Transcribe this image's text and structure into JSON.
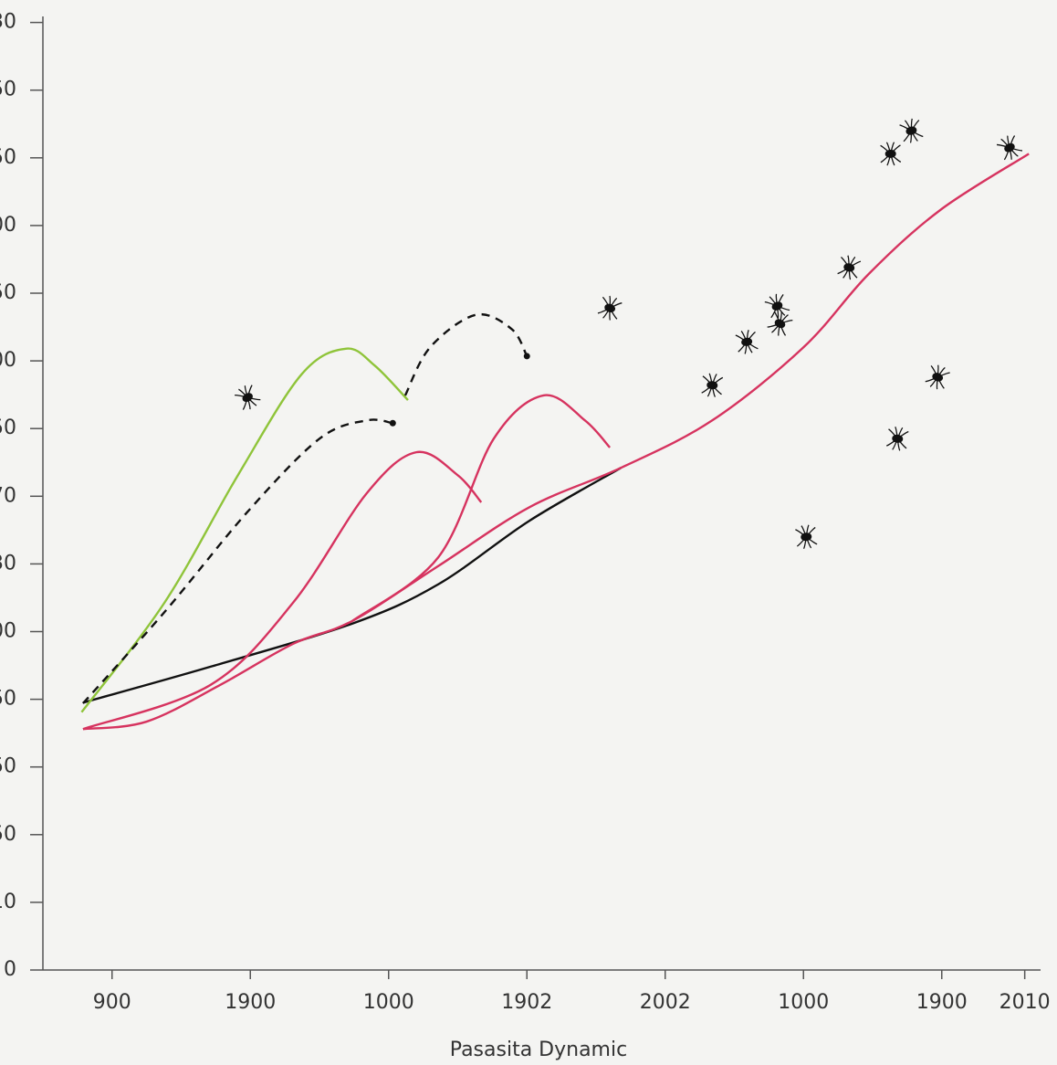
{
  "chart_data": {
    "type": "line",
    "x_label": "Pasasita Dynamic",
    "xlim": [
      -0.5,
      6.8
    ],
    "ylim": [
      0,
      14
    ],
    "xticks": [
      {
        "value": 0,
        "label": "900"
      },
      {
        "value": 1,
        "label": "1900"
      },
      {
        "value": 2,
        "label": "1000"
      },
      {
        "value": 3,
        "label": "1902"
      },
      {
        "value": 4,
        "label": "2002"
      },
      {
        "value": 5,
        "label": "1000"
      },
      {
        "value": 6,
        "label": "1900"
      },
      {
        "value": 6.6,
        "label": "2010"
      }
    ],
    "yticks": [
      {
        "value": 0,
        "label": "0"
      },
      {
        "value": 1,
        "label": "10"
      },
      {
        "value": 2,
        "label": "50"
      },
      {
        "value": 3,
        "label": "50"
      },
      {
        "value": 4,
        "label": "50"
      },
      {
        "value": 5,
        "label": "00"
      },
      {
        "value": 6,
        "label": "30"
      },
      {
        "value": 7,
        "label": "70"
      },
      {
        "value": 8,
        "label": "50"
      },
      {
        "value": 9,
        "label": "00"
      },
      {
        "value": 10,
        "label": "50"
      },
      {
        "value": 11,
        "label": "00"
      },
      {
        "value": 12,
        "label": "50"
      },
      {
        "value": 13,
        "label": "50"
      },
      {
        "value": 14,
        "label": "30"
      }
    ],
    "series": [
      {
        "color": "#111111",
        "dashed": false,
        "x": [
          -0.21,
          0.71,
          1.74,
          2.36,
          3.02,
          3.68
        ],
        "values": [
          3.95,
          4.48,
          5.12,
          5.7,
          6.64,
          7.42
        ]
      },
      {
        "color": "#d6335f",
        "dashed": false,
        "x": [
          -0.21,
          0.25,
          0.78,
          1.31,
          1.74,
          2.36,
          3.02,
          3.68,
          4.34,
          5.0,
          5.47,
          5.99,
          6.63
        ],
        "values": [
          3.56,
          3.67,
          4.21,
          4.82,
          5.16,
          5.97,
          6.84,
          7.42,
          8.12,
          9.2,
          10.28,
          11.23,
          12.06
        ]
      },
      {
        "color": "#d6335f",
        "dashed": false,
        "x": [
          -0.21,
          0.71,
          1.31,
          1.84,
          2.2,
          2.5,
          2.67
        ],
        "values": [
          3.56,
          4.21,
          5.43,
          7.04,
          7.65,
          7.31,
          6.91
        ]
      },
      {
        "color": "#d6335f",
        "dashed": false,
        "x": [
          1.74,
          2.36,
          2.76,
          3.12,
          3.42,
          3.6
        ],
        "values": [
          5.16,
          6.1,
          7.85,
          8.49,
          8.12,
          7.72
        ]
      },
      {
        "color": "#8fc43a",
        "dashed": false,
        "x": [
          -0.22,
          0.38,
          0.91,
          1.37,
          1.69,
          1.9,
          2.14
        ],
        "values": [
          3.81,
          5.43,
          7.31,
          8.8,
          9.18,
          8.93,
          8.42
        ]
      },
      {
        "color": "#111111",
        "dashed": true,
        "x": [
          -0.21,
          0.38,
          0.98,
          1.5,
          1.84,
          2.03
        ],
        "values": [
          3.94,
          5.29,
          6.77,
          7.85,
          8.12,
          8.08
        ]
      },
      {
        "color": "#111111",
        "dashed": true,
        "x": [
          2.12,
          2.3,
          2.63,
          2.89,
          3.0
        ],
        "values": [
          8.49,
          9.2,
          9.68,
          9.47,
          9.07
        ]
      }
    ],
    "points": {
      "color": "#111111",
      "x": [
        0.98,
        3.6,
        4.34,
        4.59,
        4.81,
        4.83,
        5.33,
        5.63,
        5.78,
        6.49,
        5.97,
        5.68,
        5.02
      ],
      "values": [
        8.46,
        9.78,
        8.64,
        9.28,
        9.81,
        9.55,
        10.38,
        12.06,
        12.4,
        12.15,
        8.76,
        7.85,
        6.4
      ]
    }
  }
}
